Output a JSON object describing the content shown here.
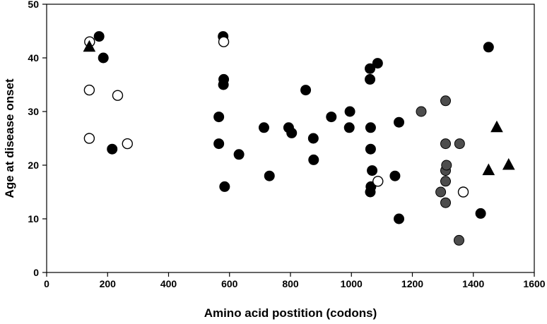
{
  "chart_data": {
    "type": "scatter",
    "xlabel": "Amino acid postition (codons)",
    "ylabel": "Age at disease onset",
    "xlim": [
      0,
      1600
    ],
    "ylim": [
      0,
      50
    ],
    "xticks": [
      0,
      200,
      400,
      600,
      800,
      1000,
      1200,
      1400,
      1600
    ],
    "yticks": [
      0,
      10,
      20,
      30,
      40,
      50
    ],
    "grid": false,
    "legend": "none",
    "series": [
      {
        "marker": "circle-filled",
        "color": "#000000",
        "points": [
          [
            172,
            44
          ],
          [
            186,
            40
          ],
          [
            215,
            23
          ],
          [
            565,
            29
          ],
          [
            565,
            24
          ],
          [
            579,
            44
          ],
          [
            580,
            35
          ],
          [
            581,
            36
          ],
          [
            584,
            16
          ],
          [
            631,
            22
          ],
          [
            713,
            27
          ],
          [
            731,
            18
          ],
          [
            794,
            27
          ],
          [
            804,
            26
          ],
          [
            850,
            34
          ],
          [
            875,
            25
          ],
          [
            876,
            21
          ],
          [
            934,
            29
          ],
          [
            993,
            27
          ],
          [
            995,
            30
          ],
          [
            1061,
            38
          ],
          [
            1061,
            36
          ],
          [
            1063,
            27
          ],
          [
            1063,
            23
          ],
          [
            1064,
            16
          ],
          [
            1062,
            15
          ],
          [
            1068,
            19
          ],
          [
            1086,
            39
          ],
          [
            1143,
            18
          ],
          [
            1156,
            28
          ],
          [
            1156,
            10
          ],
          [
            1424,
            11
          ],
          [
            1450,
            42
          ]
        ]
      },
      {
        "marker": "circle-filled",
        "color": "#4d4d4d",
        "points": [
          [
            1229,
            30
          ],
          [
            1293,
            15
          ],
          [
            1309,
            32
          ],
          [
            1309,
            24
          ],
          [
            1309,
            19
          ],
          [
            1309,
            17
          ],
          [
            1309,
            13
          ],
          [
            1312,
            20
          ],
          [
            1353,
            6
          ],
          [
            1355,
            24
          ]
        ]
      },
      {
        "marker": "circle-open",
        "color": "#000000",
        "points": [
          [
            141,
            43
          ],
          [
            140,
            34
          ],
          [
            140,
            25
          ],
          [
            233,
            33
          ],
          [
            265,
            24
          ],
          [
            581,
            43
          ],
          [
            1087,
            17
          ],
          [
            1367,
            15
          ]
        ]
      },
      {
        "marker": "triangle",
        "color": "#000000",
        "points": [
          [
            140,
            42
          ],
          [
            1450,
            19
          ],
          [
            1477,
            27
          ],
          [
            1516,
            20
          ]
        ]
      }
    ]
  }
}
